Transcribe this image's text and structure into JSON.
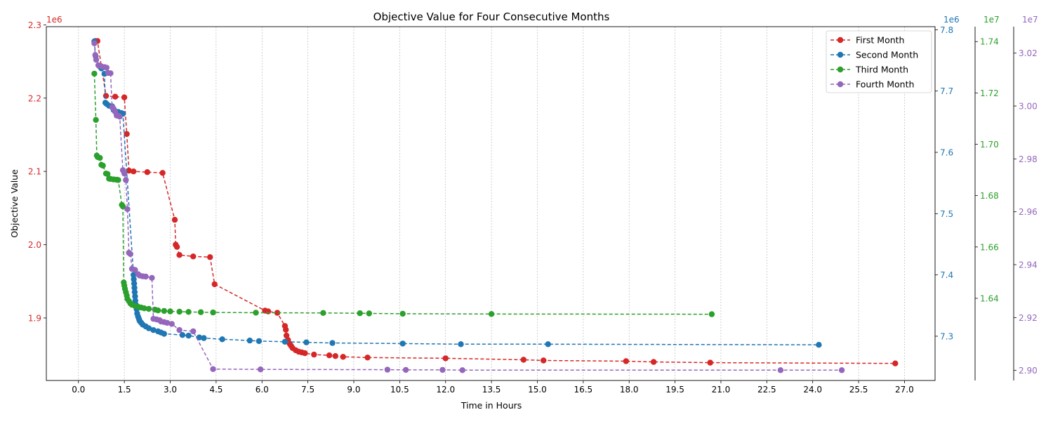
{
  "chart_data": {
    "type": "line",
    "title": "Objective Value for Four Consecutive Months",
    "xlabel": "Time in Hours",
    "ylabel": "Objective Value",
    "xlim": [
      -1.05,
      28.0
    ],
    "x_ticks": [
      "0.0",
      "1.5",
      "3.0",
      "4.5",
      "6.0",
      "7.5",
      "9.0",
      "10.5",
      "12.0",
      "13.5",
      "15.0",
      "16.5",
      "18.0",
      "19.5",
      "21.0",
      "22.5",
      "24.0",
      "25.5",
      "27.0"
    ],
    "x_tick_values": [
      0,
      1.5,
      3,
      4.5,
      6,
      7.5,
      9,
      10.5,
      12,
      13.5,
      15,
      16.5,
      18,
      19.5,
      21,
      22.5,
      24,
      25.5,
      27
    ],
    "grid": "vertical dashed",
    "legend_position": "top-right",
    "axes": [
      {
        "id": "a1",
        "side": "left",
        "color": "#d62728",
        "multiplier": "1e6",
        "ylim": [
          1.8147,
          2.2975
        ],
        "ticks": [
          "1.9",
          "2.0",
          "2.1",
          "2.2",
          "2.3"
        ],
        "tick_values": [
          1.9,
          2.0,
          2.1,
          2.2,
          2.3
        ]
      },
      {
        "id": "a2",
        "side": "right",
        "color": "#1f77b4",
        "multiplier": "1e6",
        "ylim": [
          7.2278,
          7.805
        ],
        "ticks": [
          "7.3",
          "7.4",
          "7.5",
          "7.6",
          "7.7",
          "7.8"
        ],
        "tick_values": [
          7.3,
          7.4,
          7.5,
          7.6,
          7.7,
          7.8
        ]
      },
      {
        "id": "a3",
        "side": "right",
        "color": "#2ca02c",
        "multiplier": "1e7",
        "ylim": [
          1.608,
          1.7458
        ],
        "ticks": [
          "1.64",
          "1.66",
          "1.68",
          "1.70",
          "1.72",
          "1.74"
        ],
        "tick_values": [
          1.64,
          1.66,
          1.68,
          1.7,
          1.72,
          1.74
        ]
      },
      {
        "id": "a4",
        "side": "right",
        "color": "#9467bd",
        "multiplier": "1e7",
        "ylim": [
          2.8962,
          3.03
        ],
        "ticks": [
          "2.90",
          "2.92",
          "2.94",
          "2.96",
          "2.98",
          "3.00",
          "3.02"
        ],
        "tick_values": [
          2.9,
          2.92,
          2.94,
          2.96,
          2.98,
          3.0,
          3.02
        ]
      }
    ],
    "series": [
      {
        "name": "First Month",
        "color": "#d62728",
        "axis": "a1",
        "x": [
          0.55,
          0.62,
          0.9,
          1.2,
          1.5,
          1.58,
          1.65,
          1.8,
          2.25,
          2.75,
          3.15,
          3.18,
          3.22,
          3.3,
          3.75,
          4.3,
          4.45,
          6.1,
          6.2,
          6.5,
          6.75,
          6.78,
          6.8,
          6.85,
          6.9,
          6.95,
          7.0,
          7.1,
          7.2,
          7.3,
          7.4,
          7.7,
          8.2,
          8.4,
          8.65,
          9.45,
          12.0,
          14.55,
          15.2,
          17.9,
          18.8,
          20.65,
          26.7
        ],
        "y": [
          2.278,
          2.278,
          2.203,
          2.202,
          2.201,
          2.151,
          2.101,
          2.1,
          2.099,
          2.098,
          2.034,
          2.0,
          1.997,
          1.986,
          1.984,
          1.983,
          1.946,
          1.91,
          1.909,
          1.907,
          1.889,
          1.884,
          1.876,
          1.87,
          1.865,
          1.862,
          1.859,
          1.856,
          1.854,
          1.853,
          1.852,
          1.85,
          1.849,
          1.848,
          1.847,
          1.846,
          1.845,
          1.843,
          1.842,
          1.841,
          1.84,
          1.839,
          1.838
        ]
      },
      {
        "name": "Second Month",
        "color": "#1f77b4",
        "axis": "a2",
        "x": [
          0.52,
          0.56,
          0.7,
          0.75,
          0.85,
          0.88,
          0.92,
          1.0,
          1.1,
          1.15,
          1.2,
          1.3,
          1.4,
          1.45,
          1.8,
          1.81,
          1.82,
          1.83,
          1.84,
          1.85,
          1.86,
          1.88,
          1.9,
          1.92,
          1.95,
          1.98,
          2.0,
          2.05,
          2.1,
          2.2,
          2.3,
          2.45,
          2.6,
          2.7,
          2.8,
          3.4,
          3.6,
          3.95,
          4.1,
          4.7,
          5.6,
          5.9,
          6.75,
          7.45,
          8.3,
          10.6,
          12.5,
          15.35,
          24.2
        ],
        "y": [
          7.781,
          7.757,
          7.74,
          7.737,
          7.728,
          7.681,
          7.679,
          7.676,
          7.675,
          7.669,
          7.667,
          7.666,
          7.664,
          7.663,
          7.4,
          7.393,
          7.386,
          7.379,
          7.372,
          7.365,
          7.358,
          7.351,
          7.344,
          7.337,
          7.332,
          7.328,
          7.325,
          7.322,
          7.319,
          7.316,
          7.313,
          7.31,
          7.308,
          7.306,
          7.304,
          7.302,
          7.301,
          7.298,
          7.297,
          7.295,
          7.293,
          7.292,
          7.291,
          7.29,
          7.289,
          7.288,
          7.287,
          7.287,
          7.286
        ]
      },
      {
        "name": "Third Month",
        "color": "#2ca02c",
        "axis": "a3",
        "x": [
          0.52,
          0.57,
          0.6,
          0.63,
          0.7,
          0.75,
          0.8,
          0.9,
          0.95,
          1.0,
          1.05,
          1.15,
          1.25,
          1.3,
          1.42,
          1.45,
          1.48,
          1.5,
          1.52,
          1.55,
          1.58,
          1.6,
          1.65,
          1.7,
          1.75,
          1.85,
          1.95,
          2.05,
          2.15,
          2.3,
          2.5,
          2.6,
          2.8,
          3.0,
          3.3,
          3.6,
          4.0,
          4.4,
          5.8,
          8.0,
          9.2,
          9.5,
          10.6,
          13.5,
          20.7
        ],
        "y": [
          1.7275,
          1.7095,
          1.6956,
          1.695,
          1.6947,
          1.692,
          1.6917,
          1.6886,
          1.6884,
          1.6866,
          1.6865,
          1.6863,
          1.6862,
          1.6861,
          1.6764,
          1.6758,
          1.6462,
          1.645,
          1.6437,
          1.6424,
          1.6411,
          1.6398,
          1.6389,
          1.638,
          1.6375,
          1.637,
          1.6367,
          1.6364,
          1.6361,
          1.6359,
          1.6356,
          1.6353,
          1.6351,
          1.6349,
          1.6348,
          1.6347,
          1.6346,
          1.6345,
          1.6344,
          1.6343,
          1.6342,
          1.6341,
          1.634,
          1.6339,
          1.6338
        ]
      },
      {
        "name": "Fourth Month",
        "color": "#9467bd",
        "axis": "a4",
        "x": [
          0.52,
          0.55,
          0.58,
          0.65,
          0.75,
          0.85,
          0.92,
          0.97,
          1.05,
          1.1,
          1.15,
          1.2,
          1.25,
          1.3,
          1.35,
          1.45,
          1.5,
          1.55,
          1.6,
          1.65,
          1.7,
          1.75,
          1.85,
          1.95,
          2.0,
          2.1,
          2.2,
          2.4,
          2.45,
          2.55,
          2.65,
          2.7,
          2.8,
          2.9,
          3.05,
          3.3,
          3.75,
          4.4,
          5.95,
          10.1,
          10.7,
          11.9,
          12.55,
          22.95,
          24.95
        ],
        "y": [
          3.0237,
          3.0193,
          3.0175,
          3.0154,
          3.015,
          3.0147,
          3.0145,
          3.0125,
          3.0124,
          2.9995,
          2.999,
          2.9978,
          2.9964,
          2.9963,
          2.996,
          2.9757,
          2.9745,
          2.972,
          2.961,
          2.9445,
          2.944,
          2.9384,
          2.938,
          2.9364,
          2.9359,
          2.9356,
          2.9355,
          2.935,
          2.9195,
          2.9193,
          2.919,
          2.9185,
          2.9183,
          2.918,
          2.9176,
          2.9153,
          2.9148,
          2.9005,
          2.9004,
          2.9003,
          2.9002,
          2.9002,
          2.9001,
          2.9001,
          2.9001
        ]
      }
    ]
  }
}
